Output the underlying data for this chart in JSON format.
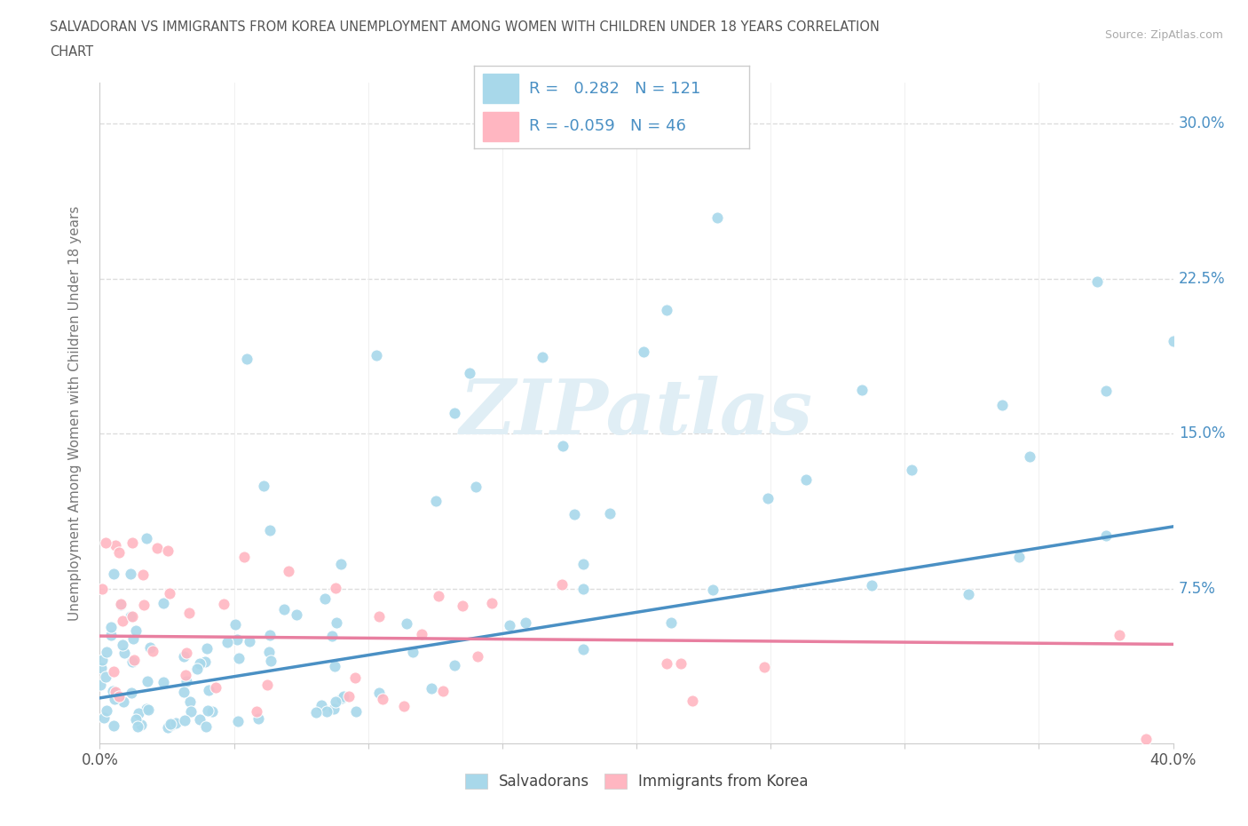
{
  "title_line1": "SALVADORAN VS IMMIGRANTS FROM KOREA UNEMPLOYMENT AMONG WOMEN WITH CHILDREN UNDER 18 YEARS CORRELATION",
  "title_line2": "CHART",
  "source": "Source: ZipAtlas.com",
  "ylabel": "Unemployment Among Women with Children Under 18 years",
  "xlim": [
    0.0,
    0.4
  ],
  "ylim": [
    0.0,
    0.32
  ],
  "salvadoran_color": "#A8D8EA",
  "korean_color": "#FFB6C1",
  "salvadoran_line_color": "#4A90C4",
  "korean_line_color": "#E87FA0",
  "R_salvadoran": 0.282,
  "N_salvadoran": 121,
  "R_korean": -0.059,
  "N_korean": 46,
  "watermark": "ZIPatlas",
  "background_color": "#ffffff",
  "grid_color": "#dddddd",
  "title_color": "#555555",
  "source_color": "#aaaaaa",
  "axis_label_color": "#4A90C4",
  "ytick_positions": [
    0.075,
    0.15,
    0.225,
    0.3
  ],
  "ytick_labels": [
    "7.5%",
    "15.0%",
    "22.5%",
    "30.0%"
  ],
  "sal_line_x0": 0.0,
  "sal_line_y0": 0.022,
  "sal_line_x1": 0.4,
  "sal_line_y1": 0.105,
  "kor_line_x0": 0.0,
  "kor_line_y0": 0.052,
  "kor_line_x1": 0.4,
  "kor_line_y1": 0.048
}
